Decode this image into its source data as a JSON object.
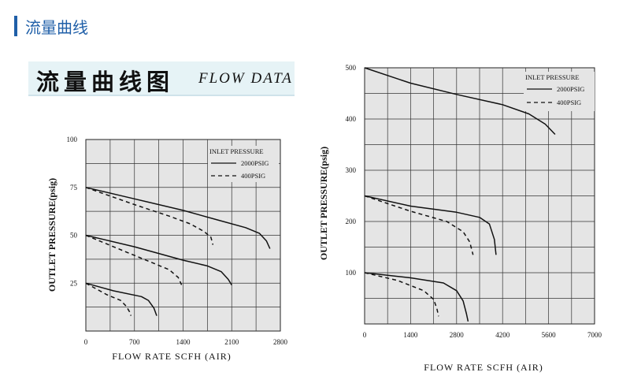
{
  "header": {
    "title": "流量曲线"
  },
  "banner": {
    "title_cn": "流量曲线图",
    "title_en": "FLOW DATA"
  },
  "chart_data": [
    {
      "type": "line",
      "xlabel": "FLOW RATE SCFH (AIR)",
      "ylabel": "OUTLET PRESSURE(psig)",
      "xlim": [
        0,
        2800
      ],
      "ylim": [
        0,
        100
      ],
      "xticks": [
        "0",
        "700",
        "1400",
        "2100",
        "2800"
      ],
      "yticks": [
        "25",
        "50",
        "75",
        "100"
      ],
      "legend": {
        "title": "INLET PRESSURE",
        "position": "top-right",
        "entries": [
          "2000PSIG",
          "400PSIG"
        ]
      },
      "series": [
        {
          "name": "2000PSIG",
          "style": "solid",
          "x": [
            0,
            700,
            1400,
            1900,
            2300,
            2500,
            2600,
            2650
          ],
          "y": [
            75,
            69,
            63,
            58,
            54,
            51,
            47,
            43
          ]
        },
        {
          "name": "400PSIG",
          "style": "dashed",
          "x": [
            0,
            700,
            1200,
            1500,
            1700,
            1800,
            1830
          ],
          "y": [
            75,
            66,
            60,
            56,
            52,
            49,
            45
          ]
        },
        {
          "name": "2000PSIG",
          "style": "solid",
          "x": [
            0,
            700,
            1400,
            1750,
            1950,
            2050,
            2100
          ],
          "y": [
            50,
            44,
            37,
            34,
            31,
            27,
            24
          ]
        },
        {
          "name": "400PSIG",
          "style": "dashed",
          "x": [
            0,
            600,
            1000,
            1200,
            1330,
            1380
          ],
          "y": [
            50,
            41,
            35,
            32,
            28,
            24
          ]
        },
        {
          "name": "2000PSIG",
          "style": "solid",
          "x": [
            0,
            400,
            800,
            900,
            980,
            1020
          ],
          "y": [
            25,
            21,
            18,
            16,
            12,
            8
          ]
        },
        {
          "name": "400PSIG",
          "style": "dashed",
          "x": [
            0,
            300,
            500,
            580,
            630,
            650
          ],
          "y": [
            25,
            19,
            16,
            13,
            10,
            8
          ]
        }
      ]
    },
    {
      "type": "line",
      "xlabel": "FLOW RATE SCFH (AIR)",
      "ylabel": "OUTLET PRESSURE(psig)",
      "xlim": [
        0,
        7000
      ],
      "ylim": [
        0,
        500
      ],
      "xticks": [
        "0",
        "1400",
        "2800",
        "4200",
        "5600",
        "7000"
      ],
      "yticks": [
        "100",
        "200",
        "300",
        "400",
        "500"
      ],
      "legend": {
        "title": "INLET PRESSURE",
        "position": "top-right",
        "entries": [
          "2000PSIG",
          "400PSIG"
        ]
      },
      "series": [
        {
          "name": "2000PSIG",
          "style": "solid",
          "x": [
            0,
            1400,
            2800,
            4200,
            5000,
            5500,
            5800
          ],
          "y": [
            500,
            470,
            448,
            428,
            410,
            390,
            370
          ]
        },
        {
          "name": "2000PSIG",
          "style": "solid",
          "x": [
            0,
            1400,
            2800,
            3500,
            3800,
            3950,
            4000
          ],
          "y": [
            250,
            230,
            218,
            208,
            195,
            165,
            135
          ]
        },
        {
          "name": "400PSIG",
          "style": "dashed",
          "x": [
            0,
            1400,
            2500,
            3000,
            3200,
            3300
          ],
          "y": [
            250,
            220,
            200,
            180,
            160,
            135
          ]
        },
        {
          "name": "2000PSIG",
          "style": "solid",
          "x": [
            0,
            1400,
            2400,
            2800,
            3000,
            3100,
            3150
          ],
          "y": [
            100,
            90,
            80,
            65,
            45,
            20,
            5
          ]
        },
        {
          "name": "400PSIG",
          "style": "dashed",
          "x": [
            0,
            1000,
            1800,
            2100,
            2200,
            2250
          ],
          "y": [
            100,
            85,
            65,
            48,
            30,
            15
          ]
        }
      ]
    }
  ]
}
